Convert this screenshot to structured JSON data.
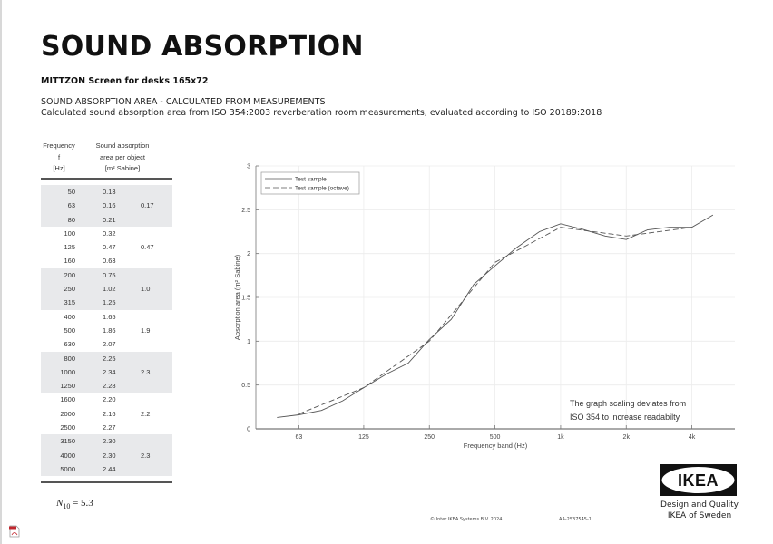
{
  "header": {
    "title": "SOUND ABSORPTION",
    "subtitle": "MITTZON Screen for desks 165x72",
    "description_line1": "SOUND ABSORPTION AREA - CALCULATED FROM MEASUREMENTS",
    "description_line2": "Calculated sound absorption area from ISO 354:2003 reverberation room measurements, evaluated according to ISO 20189:2018"
  },
  "table": {
    "col1_header": [
      "Frequency",
      "f",
      "[Hz]"
    ],
    "col2_header": [
      "Sound absorption",
      "area per object",
      "[m² Sabine]"
    ],
    "rows": [
      {
        "f": "50",
        "v": "0.13",
        "oct": ""
      },
      {
        "f": "63",
        "v": "0.16",
        "oct": "0.17"
      },
      {
        "f": "80",
        "v": "0.21",
        "oct": ""
      },
      {
        "f": "100",
        "v": "0.32",
        "oct": ""
      },
      {
        "f": "125",
        "v": "0.47",
        "oct": "0.47"
      },
      {
        "f": "160",
        "v": "0.63",
        "oct": ""
      },
      {
        "f": "200",
        "v": "0.75",
        "oct": ""
      },
      {
        "f": "250",
        "v": "1.02",
        "oct": "1.0"
      },
      {
        "f": "315",
        "v": "1.25",
        "oct": ""
      },
      {
        "f": "400",
        "v": "1.65",
        "oct": ""
      },
      {
        "f": "500",
        "v": "1.86",
        "oct": "1.9"
      },
      {
        "f": "630",
        "v": "2.07",
        "oct": ""
      },
      {
        "f": "800",
        "v": "2.25",
        "oct": ""
      },
      {
        "f": "1000",
        "v": "2.34",
        "oct": "2.3"
      },
      {
        "f": "1250",
        "v": "2.28",
        "oct": ""
      },
      {
        "f": "1600",
        "v": "2.20",
        "oct": ""
      },
      {
        "f": "2000",
        "v": "2.16",
        "oct": "2.2"
      },
      {
        "f": "2500",
        "v": "2.27",
        "oct": ""
      },
      {
        "f": "3150",
        "v": "2.30",
        "oct": ""
      },
      {
        "f": "4000",
        "v": "2.30",
        "oct": "2.3"
      },
      {
        "f": "5000",
        "v": "2.44",
        "oct": ""
      }
    ],
    "n10_symbol": "N",
    "n10_sub": "10",
    "n10_value": " = 5.3"
  },
  "chart_data": {
    "type": "line",
    "title": "",
    "xlabel": "Frequency band (Hz)",
    "ylabel": "Absorption area (m² Sabine)",
    "xscale": "log",
    "xticks": [
      "63",
      "125",
      "250",
      "500",
      "1k",
      "2k",
      "4k"
    ],
    "xtick_values": [
      63,
      125,
      250,
      500,
      1000,
      2000,
      4000
    ],
    "yticks": [
      "0",
      "0.5",
      "1",
      "1.5",
      "2",
      "2.5",
      "3"
    ],
    "ylim": [
      0,
      3
    ],
    "grid": true,
    "legend_position": "upper left",
    "series": [
      {
        "name": "Test sample",
        "style": "solid",
        "x": [
          50,
          63,
          80,
          100,
          125,
          160,
          200,
          250,
          315,
          400,
          500,
          630,
          800,
          1000,
          1250,
          1600,
          2000,
          2500,
          3150,
          4000,
          5000
        ],
        "values": [
          0.13,
          0.16,
          0.21,
          0.32,
          0.47,
          0.63,
          0.75,
          1.02,
          1.25,
          1.65,
          1.86,
          2.07,
          2.25,
          2.34,
          2.28,
          2.2,
          2.16,
          2.27,
          2.3,
          2.3,
          2.44
        ]
      },
      {
        "name": "Test sample (octave)",
        "style": "dashed",
        "x": [
          63,
          125,
          250,
          500,
          1000,
          2000,
          4000
        ],
        "values": [
          0.17,
          0.47,
          1.0,
          1.9,
          2.3,
          2.2,
          2.3
        ]
      }
    ],
    "annotation_line1": "The graph scaling deviates from",
    "annotation_line2": "ISO 354 to increase readabilty"
  },
  "footer": {
    "copyright": "© Inter IKEA Systems B.V. 2024",
    "doc_id": "AA-2537545-1",
    "logo_text": "IKEA",
    "tagline1": "Design and Quality",
    "tagline2": "IKEA of Sweden"
  },
  "icons": {
    "pdf": "pdf-file-icon"
  }
}
